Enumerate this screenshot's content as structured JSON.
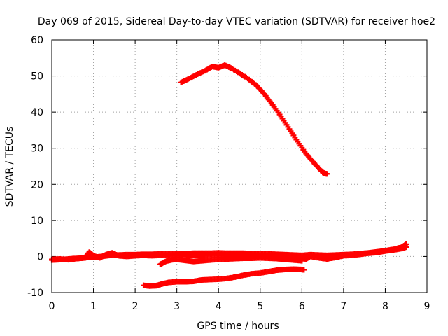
{
  "chart_data": {
    "type": "scatter",
    "title": "Day 069 of 2015, Sidereal Day-to-day VTEC variation (SDTVAR) for receiver hoe2",
    "xlabel": "GPS time / hours",
    "ylabel": "SDTVAR / TECUs",
    "xlim": [
      0,
      9
    ],
    "ylim": [
      -10,
      60
    ],
    "xticks": [
      "0",
      "1",
      "2",
      "3",
      "4",
      "5",
      "6",
      "7",
      "8",
      "9"
    ],
    "yticks": [
      "-10",
      "0",
      "10",
      "20",
      "30",
      "40",
      "50",
      "60"
    ],
    "grid": true,
    "marker_color": "#ff0000",
    "series": [
      {
        "points": [
          [
            3.1,
            48.2
          ],
          [
            3.3,
            49.3
          ],
          [
            3.5,
            50.5
          ],
          [
            3.7,
            51.6
          ],
          [
            3.85,
            52.6
          ],
          [
            4.0,
            52.3
          ],
          [
            4.15,
            53.0
          ],
          [
            4.3,
            52.2
          ],
          [
            4.5,
            50.8
          ],
          [
            4.7,
            49.3
          ],
          [
            4.9,
            47.5
          ],
          [
            5.1,
            45.0
          ],
          [
            5.3,
            42.0
          ],
          [
            5.5,
            38.8
          ],
          [
            5.7,
            35.3
          ],
          [
            5.9,
            31.8
          ],
          [
            6.1,
            28.5
          ],
          [
            6.3,
            25.8
          ],
          [
            6.5,
            23.3
          ],
          [
            6.55,
            23.0
          ],
          [
            6.6,
            22.9
          ]
        ]
      },
      {
        "points": [
          [
            0.0,
            -1.0
          ],
          [
            0.15,
            -0.9
          ],
          [
            0.3,
            -0.8
          ],
          [
            0.5,
            -0.6
          ],
          [
            0.7,
            -0.5
          ],
          [
            0.85,
            -0.3
          ],
          [
            1.0,
            -0.2
          ],
          [
            1.2,
            0.0
          ],
          [
            1.4,
            0.3
          ],
          [
            1.6,
            0.4
          ],
          [
            1.8,
            0.5
          ],
          [
            2.0,
            0.5
          ],
          [
            2.2,
            0.6
          ],
          [
            2.4,
            0.6
          ],
          [
            2.6,
            0.7
          ],
          [
            2.8,
            0.7
          ],
          [
            3.0,
            0.8
          ],
          [
            3.2,
            0.8
          ],
          [
            3.4,
            0.9
          ],
          [
            3.6,
            0.9
          ],
          [
            3.8,
            0.9
          ],
          [
            4.0,
            1.0
          ],
          [
            4.2,
            0.9
          ],
          [
            4.4,
            0.9
          ],
          [
            4.6,
            0.9
          ],
          [
            4.8,
            0.8
          ],
          [
            5.0,
            0.8
          ],
          [
            5.2,
            0.7
          ],
          [
            5.4,
            0.6
          ],
          [
            5.6,
            0.5
          ],
          [
            5.8,
            0.4
          ],
          [
            6.0,
            0.3
          ],
          [
            6.2,
            0.5
          ],
          [
            6.4,
            0.4
          ],
          [
            6.6,
            0.3
          ],
          [
            6.8,
            0.4
          ],
          [
            7.0,
            0.5
          ],
          [
            7.2,
            0.6
          ],
          [
            7.4,
            0.8
          ],
          [
            7.6,
            1.0
          ],
          [
            7.8,
            1.3
          ],
          [
            8.0,
            1.6
          ],
          [
            8.2,
            2.0
          ],
          [
            8.4,
            2.6
          ],
          [
            8.5,
            3.4
          ]
        ]
      },
      {
        "points": [
          [
            0.0,
            -0.8
          ],
          [
            0.2,
            -0.7
          ],
          [
            0.4,
            -0.9
          ],
          [
            0.6,
            -0.6
          ],
          [
            0.8,
            -0.4
          ],
          [
            0.9,
            1.2
          ],
          [
            1.0,
            0.2
          ],
          [
            1.15,
            -0.4
          ],
          [
            1.3,
            0.5
          ],
          [
            1.45,
            1.0
          ],
          [
            1.6,
            0.2
          ],
          [
            1.8,
            0.0
          ],
          [
            2.0,
            0.2
          ],
          [
            2.2,
            0.3
          ],
          [
            2.4,
            0.2
          ],
          [
            2.6,
            0.3
          ],
          [
            2.8,
            0.3
          ],
          [
            3.0,
            0.4
          ],
          [
            3.2,
            0.5
          ],
          [
            3.4,
            0.3
          ],
          [
            3.6,
            0.4
          ],
          [
            3.8,
            0.5
          ],
          [
            4.0,
            0.3
          ],
          [
            4.2,
            0.4
          ],
          [
            4.4,
            0.3
          ],
          [
            4.6,
            0.2
          ],
          [
            4.8,
            0.4
          ],
          [
            5.0,
            0.2
          ],
          [
            5.2,
            0.3
          ],
          [
            5.4,
            0.2
          ],
          [
            5.6,
            0.4
          ],
          [
            5.8,
            0.0
          ],
          [
            6.0,
            -0.5
          ],
          [
            6.1,
            -0.7
          ],
          [
            6.2,
            0.0
          ],
          [
            6.4,
            -0.4
          ],
          [
            6.6,
            -0.7
          ],
          [
            6.8,
            -0.3
          ],
          [
            7.0,
            0.2
          ],
          [
            7.2,
            0.3
          ],
          [
            7.4,
            0.6
          ],
          [
            7.6,
            0.9
          ],
          [
            7.8,
            1.1
          ],
          [
            8.0,
            1.5
          ],
          [
            8.2,
            1.8
          ],
          [
            8.4,
            2.2
          ],
          [
            8.5,
            2.6
          ]
        ]
      },
      {
        "points": [
          [
            2.6,
            -2.2
          ],
          [
            2.75,
            -1.3
          ],
          [
            2.9,
            -0.9
          ],
          [
            3.0,
            -0.8
          ],
          [
            3.2,
            -1.1
          ],
          [
            3.4,
            -1.4
          ],
          [
            3.6,
            -1.2
          ],
          [
            3.8,
            -1.0
          ],
          [
            4.0,
            -0.8
          ],
          [
            4.2,
            -0.7
          ],
          [
            4.4,
            -0.6
          ],
          [
            4.6,
            -0.5
          ],
          [
            4.8,
            -0.5
          ],
          [
            5.0,
            -0.4
          ],
          [
            5.2,
            -0.5
          ],
          [
            5.4,
            -0.6
          ],
          [
            5.6,
            -0.8
          ],
          [
            5.8,
            -1.0
          ],
          [
            6.0,
            -1.2
          ]
        ]
      },
      {
        "points": [
          [
            2.2,
            -8.0
          ],
          [
            2.35,
            -8.2
          ],
          [
            2.5,
            -8.1
          ],
          [
            2.65,
            -7.6
          ],
          [
            2.8,
            -7.2
          ],
          [
            3.0,
            -7.0
          ],
          [
            3.2,
            -7.0
          ],
          [
            3.4,
            -6.9
          ],
          [
            3.6,
            -6.5
          ],
          [
            3.8,
            -6.4
          ],
          [
            4.0,
            -6.3
          ],
          [
            4.2,
            -6.1
          ],
          [
            4.4,
            -5.7
          ],
          [
            4.6,
            -5.2
          ],
          [
            4.8,
            -4.8
          ],
          [
            5.0,
            -4.6
          ],
          [
            5.2,
            -4.2
          ],
          [
            5.4,
            -3.8
          ],
          [
            5.6,
            -3.6
          ],
          [
            5.8,
            -3.5
          ],
          [
            6.0,
            -3.6
          ],
          [
            6.05,
            -3.7
          ]
        ]
      }
    ]
  }
}
